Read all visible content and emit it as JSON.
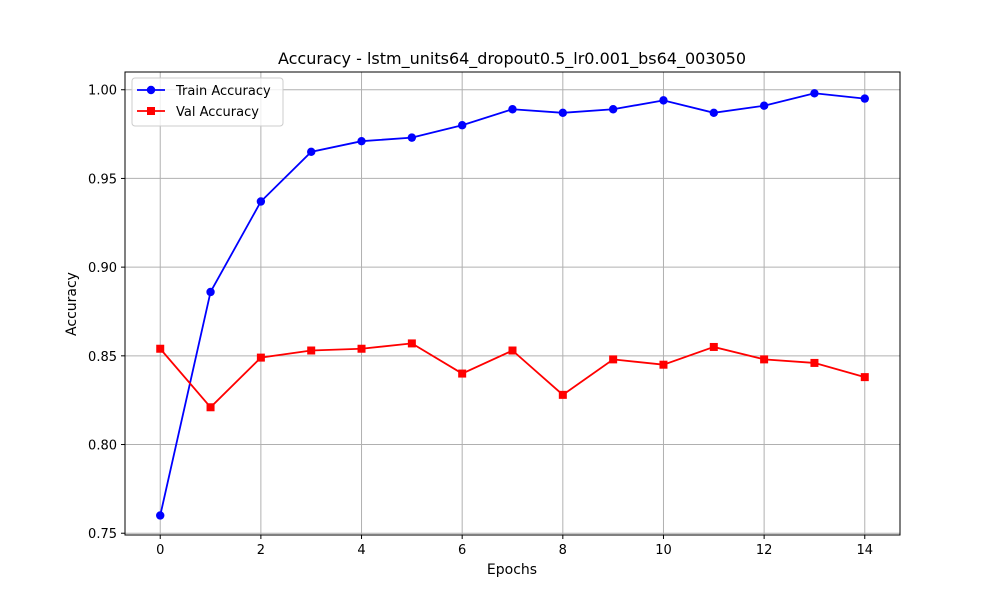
{
  "chart_data": {
    "type": "line",
    "title": "Accuracy - lstm_units64_dropout0.5_lr0.001_bs64_003050",
    "xlabel": "Epochs",
    "ylabel": "Accuracy",
    "xlim": [
      -0.7,
      14.7
    ],
    "ylim": [
      0.749,
      1.01
    ],
    "x_ticks": [
      0,
      2,
      4,
      6,
      8,
      10,
      12,
      14
    ],
    "x_tick_labels": [
      "0",
      "2",
      "4",
      "6",
      "8",
      "10",
      "12",
      "14"
    ],
    "y_ticks": [
      0.75,
      0.8,
      0.85,
      0.9,
      0.95,
      1.0
    ],
    "y_tick_labels": [
      "0.75",
      "0.80",
      "0.85",
      "0.90",
      "0.95",
      "1.00"
    ],
    "grid": true,
    "legend_position": "top-left",
    "x": [
      0,
      1,
      2,
      3,
      4,
      5,
      6,
      7,
      8,
      9,
      10,
      11,
      12,
      13,
      14
    ],
    "series": [
      {
        "name": "Train Accuracy",
        "color": "#0000ff",
        "marker": "circle",
        "values": [
          0.76,
          0.886,
          0.937,
          0.965,
          0.971,
          0.973,
          0.98,
          0.989,
          0.987,
          0.989,
          0.994,
          0.987,
          0.991,
          0.998,
          0.995
        ]
      },
      {
        "name": "Val Accuracy",
        "color": "#ff0000",
        "marker": "square",
        "values": [
          0.854,
          0.821,
          0.849,
          0.853,
          0.854,
          0.857,
          0.84,
          0.853,
          0.828,
          0.848,
          0.845,
          0.855,
          0.848,
          0.846,
          0.838
        ]
      }
    ]
  }
}
